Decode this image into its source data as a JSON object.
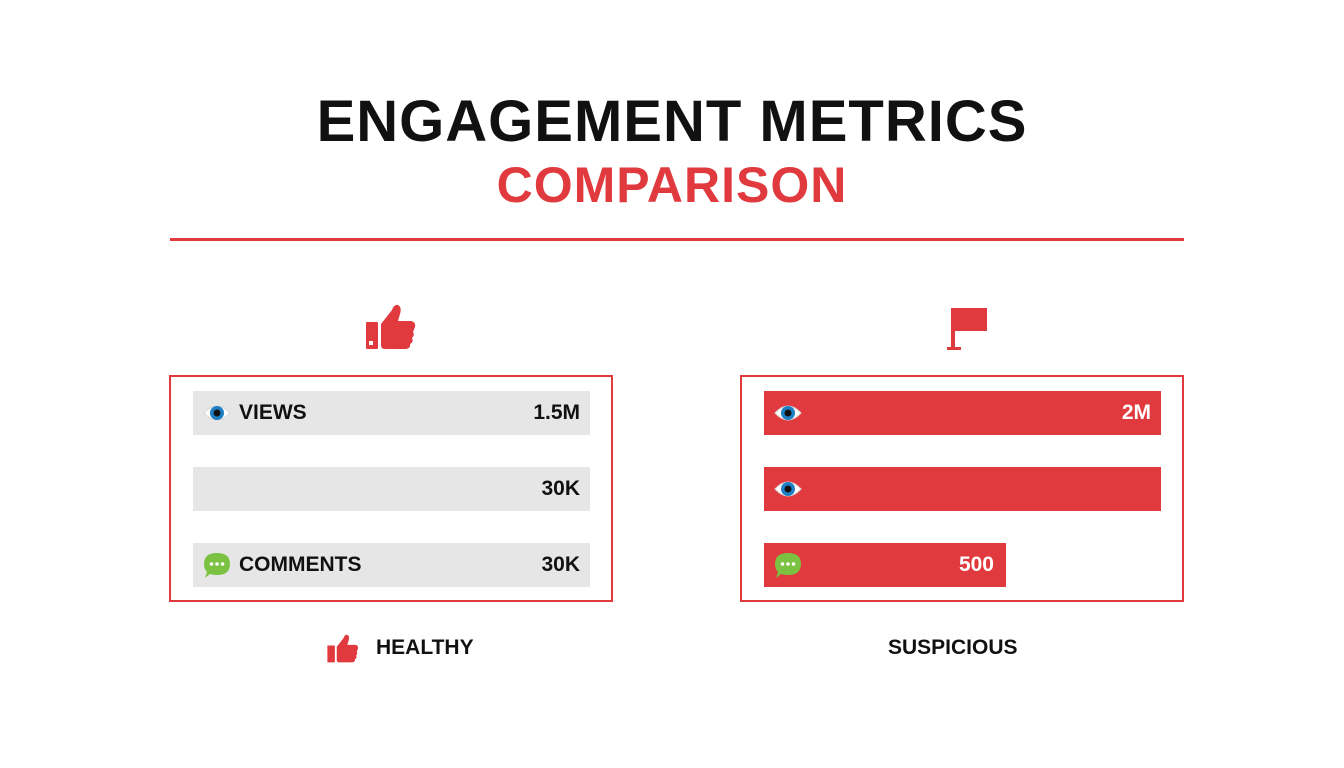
{
  "header": {
    "title": "ENGAGEMENT METRICS",
    "subtitle": "COMPARISON"
  },
  "colors": {
    "accent": "#e03a3e",
    "bar_neutral": "#e6e6e6",
    "text": "#111111",
    "eye_iris": "#1f7fc4",
    "comment_green": "#7cc242"
  },
  "chart_data": [
    {
      "type": "bar",
      "orientation": "horizontal",
      "panel": "left",
      "header_icon": "thumbs-up-icon",
      "verdict": "HEALTHY",
      "verdict_icon": "thumbs-up-icon",
      "bars": [
        {
          "label": "VIEWS",
          "icon": "eye-icon",
          "value_label": "1.5M",
          "fill": 1.0
        },
        {
          "label": "",
          "icon": "",
          "value_label": "30K",
          "fill": 1.0
        },
        {
          "label": "COMMENTS",
          "icon": "comment-icon",
          "value_label": "30K",
          "fill": 1.0
        }
      ]
    },
    {
      "type": "bar",
      "orientation": "horizontal",
      "panel": "right",
      "header_icon": "flag-icon",
      "verdict": "SUSPICIOUS",
      "verdict_icon": "",
      "bars": [
        {
          "label": "",
          "icon": "eye-icon",
          "value_label": "2M",
          "fill": 1.0
        },
        {
          "label": "",
          "icon": "eye-icon",
          "value_label": "",
          "fill": 1.0
        },
        {
          "label": "",
          "icon": "comment-icon",
          "value_label": "500",
          "fill": 0.61
        }
      ]
    }
  ]
}
